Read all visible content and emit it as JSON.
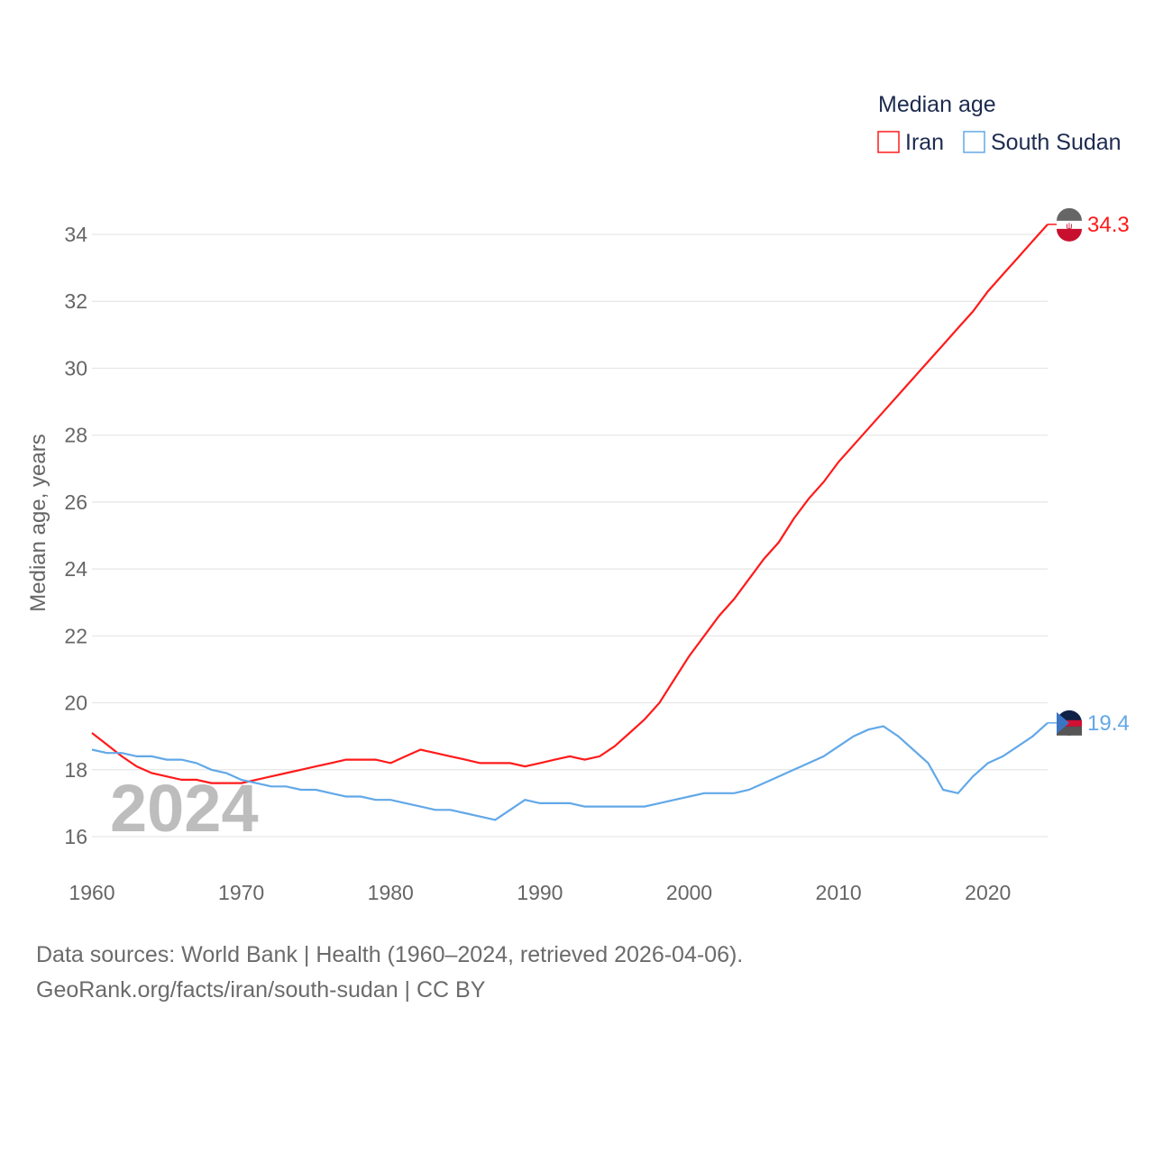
{
  "chart_data": {
    "type": "line",
    "title": "",
    "xlabel": "",
    "ylabel": "Median age, years",
    "xlim": [
      1960,
      2024
    ],
    "ylim": [
      16,
      34
    ],
    "x_ticks": [
      "1960",
      "1970",
      "1980",
      "1990",
      "2000",
      "2010",
      "2020"
    ],
    "y_ticks": [
      "16",
      "18",
      "20",
      "22",
      "24",
      "26",
      "28",
      "30",
      "32",
      "34"
    ],
    "grid": true,
    "legend_title": "Median age",
    "legend_position": "top-right",
    "year_watermark": "2024",
    "x": [
      1960,
      1961,
      1962,
      1963,
      1964,
      1965,
      1966,
      1967,
      1968,
      1969,
      1970,
      1971,
      1972,
      1973,
      1974,
      1975,
      1976,
      1977,
      1978,
      1979,
      1980,
      1981,
      1982,
      1983,
      1984,
      1985,
      1986,
      1987,
      1988,
      1989,
      1990,
      1991,
      1992,
      1993,
      1994,
      1995,
      1996,
      1997,
      1998,
      1999,
      2000,
      2001,
      2002,
      2003,
      2004,
      2005,
      2006,
      2007,
      2008,
      2009,
      2010,
      2011,
      2012,
      2013,
      2014,
      2015,
      2016,
      2017,
      2018,
      2019,
      2020,
      2021,
      2022,
      2023,
      2024
    ],
    "series": [
      {
        "name": "Iran",
        "color": "#ff1a1a",
        "end_label": "34.3",
        "values": [
          19.1,
          18.75,
          18.4,
          18.1,
          17.9,
          17.8,
          17.7,
          17.7,
          17.6,
          17.6,
          17.6,
          17.7,
          17.8,
          17.9,
          18.0,
          18.1,
          18.2,
          18.3,
          18.3,
          18.3,
          18.2,
          18.4,
          18.6,
          18.5,
          18.4,
          18.3,
          18.2,
          18.2,
          18.2,
          18.1,
          18.2,
          18.3,
          18.4,
          18.3,
          18.4,
          18.7,
          19.1,
          19.5,
          20.0,
          20.7,
          21.4,
          22.0,
          22.6,
          23.1,
          23.7,
          24.3,
          24.8,
          25.5,
          26.1,
          26.6,
          27.2,
          27.7,
          28.2,
          28.7,
          29.2,
          29.7,
          30.2,
          30.7,
          31.2,
          31.7,
          32.3,
          32.8,
          33.3,
          33.8,
          34.3
        ]
      },
      {
        "name": "South Sudan",
        "color": "#62a8e8",
        "end_label": "19.4",
        "values": [
          18.6,
          18.5,
          18.5,
          18.4,
          18.4,
          18.3,
          18.3,
          18.2,
          18.0,
          17.9,
          17.7,
          17.6,
          17.5,
          17.5,
          17.4,
          17.4,
          17.3,
          17.2,
          17.2,
          17.1,
          17.1,
          17.0,
          16.9,
          16.8,
          16.8,
          16.7,
          16.6,
          16.5,
          16.8,
          17.1,
          17.0,
          17.0,
          17.0,
          16.9,
          16.9,
          16.9,
          16.9,
          16.9,
          17.0,
          17.1,
          17.2,
          17.3,
          17.3,
          17.3,
          17.4,
          17.6,
          17.8,
          18.0,
          18.2,
          18.4,
          18.7,
          19.0,
          19.2,
          19.3,
          19.0,
          18.6,
          18.2,
          17.4,
          17.3,
          17.8,
          18.2,
          18.4,
          18.7,
          19.0,
          19.4
        ]
      }
    ]
  },
  "footer": {
    "line1": "Data sources: World Bank | Health (1960–2024, retrieved 2026-04-06).",
    "line2": "GeoRank.org/facts/iran/south-sudan | CC BY"
  }
}
